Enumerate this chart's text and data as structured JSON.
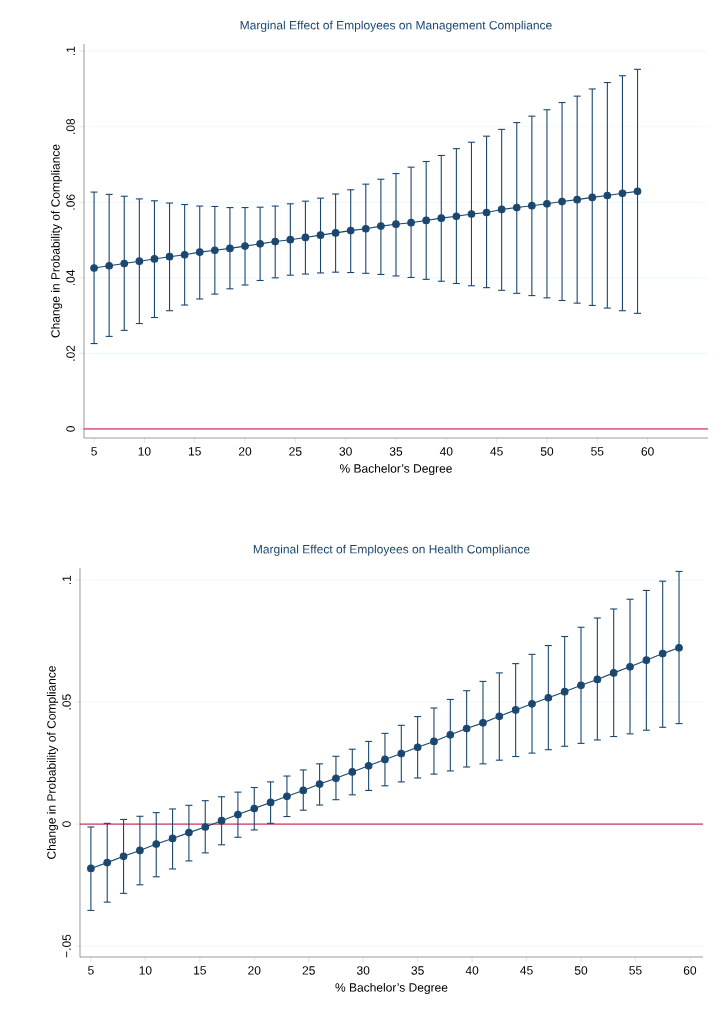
{
  "chart_data": [
    {
      "type": "line",
      "title": "Marginal Effect of Employees on Management Compliance",
      "xlabel": "% Bachelor’s Degree",
      "ylabel": "Change in Probability of Compliance",
      "x": [
        5,
        6.5,
        8,
        9.5,
        11,
        12.5,
        14,
        15.5,
        17,
        18.5,
        20,
        21.5,
        23,
        24.5,
        26,
        27.5,
        29,
        30.5,
        32,
        33.5,
        35,
        36.5,
        38,
        39.5,
        41,
        42.5,
        44,
        45.5,
        47,
        48.5,
        50,
        51.5,
        53,
        54.5,
        56,
        57.5,
        59
      ],
      "series": [
        {
          "color": "#1a476f",
          "values": [
            0.0426,
            0.0432,
            0.0438,
            0.0444,
            0.045,
            0.0456,
            0.0461,
            0.0468,
            0.0473,
            0.0478,
            0.0484,
            0.049,
            0.0496,
            0.0501,
            0.0507,
            0.0513,
            0.0519,
            0.0525,
            0.053,
            0.0537,
            0.0542,
            0.0546,
            0.0552,
            0.0558,
            0.0563,
            0.0569,
            0.0573,
            0.0581,
            0.0586,
            0.0591,
            0.0596,
            0.0602,
            0.0607,
            0.0613,
            0.0618,
            0.0624,
            0.0629
          ],
          "errors": [
            [
              0.0226,
              0.0627
            ],
            [
              0.0245,
              0.0621
            ],
            [
              0.0261,
              0.0616
            ],
            [
              0.0279,
              0.0609
            ],
            [
              0.0295,
              0.0604
            ],
            [
              0.0313,
              0.0598
            ],
            [
              0.0328,
              0.0594
            ],
            [
              0.0344,
              0.059
            ],
            [
              0.0357,
              0.0589
            ],
            [
              0.0371,
              0.0586
            ],
            [
              0.0381,
              0.0586
            ],
            [
              0.0393,
              0.0587
            ],
            [
              0.04,
              0.059
            ],
            [
              0.0407,
              0.0596
            ],
            [
              0.041,
              0.0603
            ],
            [
              0.0413,
              0.0611
            ],
            [
              0.0415,
              0.0622
            ],
            [
              0.0414,
              0.0633
            ],
            [
              0.0412,
              0.0648
            ],
            [
              0.0409,
              0.0661
            ],
            [
              0.0405,
              0.0676
            ],
            [
              0.0401,
              0.0693
            ],
            [
              0.0396,
              0.0708
            ],
            [
              0.0391,
              0.0724
            ],
            [
              0.0385,
              0.0742
            ],
            [
              0.0379,
              0.0759
            ],
            [
              0.0374,
              0.0775
            ],
            [
              0.0367,
              0.0793
            ],
            [
              0.0359,
              0.0811
            ],
            [
              0.0353,
              0.0828
            ],
            [
              0.0347,
              0.0845
            ],
            [
              0.034,
              0.0864
            ],
            [
              0.0333,
              0.0881
            ],
            [
              0.0327,
              0.09
            ],
            [
              0.032,
              0.0917
            ],
            [
              0.0313,
              0.0935
            ],
            [
              0.0306,
              0.0952
            ]
          ]
        }
      ],
      "xlim": [
        4,
        66
      ],
      "xticks": [
        5,
        10,
        15,
        20,
        25,
        30,
        35,
        40,
        45,
        50,
        55,
        60
      ],
      "ylim": [
        -0.0024,
        0.1019
      ],
      "yticks": [
        {
          "value": 0,
          "label": "0"
        },
        {
          "value": 0.02,
          "label": ".02"
        },
        {
          "value": 0.04,
          "label": ".04"
        },
        {
          "value": 0.06,
          "label": ".06"
        },
        {
          "value": 0.08,
          "label": ".08"
        },
        {
          "value": 0.1,
          "label": ".1"
        }
      ],
      "ref_lines": [
        {
          "axis": "y",
          "value": 0,
          "color": "#c10534"
        }
      ],
      "grid": "y",
      "marker": "circle",
      "line_style": "solid"
    },
    {
      "type": "line",
      "title": "Marginal Effect of Employees on Health Compliance",
      "xlabel": "% Bachelor’s Degree",
      "ylabel": "Change in Probability of Compliance",
      "x": [
        5,
        6.5,
        8,
        9.5,
        11,
        12.5,
        14,
        15.5,
        17,
        18.5,
        20,
        21.5,
        23,
        24.5,
        26,
        27.5,
        29,
        30.5,
        32,
        33.5,
        35,
        36.5,
        38,
        39.5,
        41,
        42.5,
        44,
        45.5,
        47,
        48.5,
        50,
        51.5,
        53,
        54.5,
        56,
        57.5,
        59
      ],
      "series": [
        {
          "color": "#1a476f",
          "values": [
            -0.0182,
            -0.0158,
            -0.0132,
            -0.0108,
            -0.0082,
            -0.0059,
            -0.0035,
            -0.0012,
            0.0014,
            0.0039,
            0.0064,
            0.0089,
            0.0114,
            0.0138,
            0.0164,
            0.0188,
            0.0214,
            0.0239,
            0.0265,
            0.0289,
            0.0315,
            0.0339,
            0.0366,
            0.0392,
            0.0415,
            0.0442,
            0.0468,
            0.0493,
            0.0518,
            0.0543,
            0.0569,
            0.0593,
            0.062,
            0.0645,
            0.0672,
            0.0699,
            0.0723
          ],
          "errors": [
            [
              -0.0354,
              -0.0012
            ],
            [
              -0.032,
              0.0003
            ],
            [
              -0.0284,
              0.0019
            ],
            [
              -0.0249,
              0.0032
            ],
            [
              -0.0216,
              0.0047
            ],
            [
              -0.0184,
              0.0062
            ],
            [
              -0.0151,
              0.0077
            ],
            [
              -0.0118,
              0.0096
            ],
            [
              -0.0085,
              0.0112
            ],
            [
              -0.0054,
              0.0131
            ],
            [
              -0.0024,
              0.015
            ],
            [
              0.0003,
              0.0173
            ],
            [
              0.0031,
              0.0197
            ],
            [
              0.0057,
              0.0222
            ],
            [
              0.0078,
              0.0247
            ],
            [
              0.01,
              0.0278
            ],
            [
              0.012,
              0.0307
            ],
            [
              0.0138,
              0.0339
            ],
            [
              0.0157,
              0.0372
            ],
            [
              0.0173,
              0.0405
            ],
            [
              0.0189,
              0.0441
            ],
            [
              0.0205,
              0.0476
            ],
            [
              0.0218,
              0.0511
            ],
            [
              0.0234,
              0.0547
            ],
            [
              0.0247,
              0.0585
            ],
            [
              0.0262,
              0.062
            ],
            [
              0.0277,
              0.0658
            ],
            [
              0.0291,
              0.0696
            ],
            [
              0.0305,
              0.0732
            ],
            [
              0.0319,
              0.0769
            ],
            [
              0.0331,
              0.0807
            ],
            [
              0.0345,
              0.0845
            ],
            [
              0.0359,
              0.0882
            ],
            [
              0.037,
              0.0922
            ],
            [
              0.0385,
              0.0958
            ],
            [
              0.0397,
              0.0996
            ],
            [
              0.0412,
              0.1036
            ]
          ]
        }
      ],
      "xlim": [
        4,
        61.2
      ],
      "xticks": [
        5,
        10,
        15,
        20,
        25,
        30,
        35,
        40,
        45,
        50,
        55,
        60
      ],
      "ylim": [
        -0.0545,
        0.105
      ],
      "yticks": [
        {
          "value": -0.05,
          "label": "−.05"
        },
        {
          "value": 0,
          "label": "0"
        },
        {
          "value": 0.05,
          "label": ".05"
        },
        {
          "value": 0.1,
          "label": ".1"
        }
      ],
      "ref_lines": [
        {
          "axis": "y",
          "value": 0,
          "color": "#c10534"
        }
      ],
      "grid": "y",
      "marker": "circle",
      "line_style": "solid"
    }
  ]
}
